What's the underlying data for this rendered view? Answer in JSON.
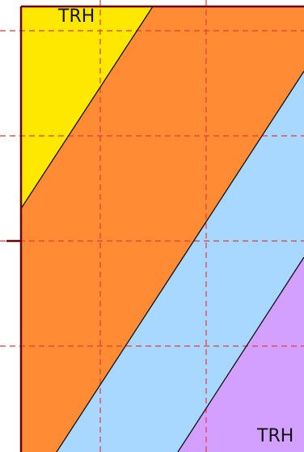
{
  "diagram": {
    "labels": {
      "top_zone": "TRH",
      "bottom_zone": "TRH"
    },
    "zones": [
      {
        "id": "yellow",
        "color": "#FFE800"
      },
      {
        "id": "orange",
        "color": "#FF8C35"
      },
      {
        "id": "blue",
        "color": "#A8D8FF"
      },
      {
        "id": "purple",
        "color": "#D4A0FF"
      }
    ],
    "colors": {
      "boundary_line": "#111111",
      "grid_line": "#E83838",
      "frame": "#6B0000",
      "background": "#FFFFFF"
    }
  }
}
